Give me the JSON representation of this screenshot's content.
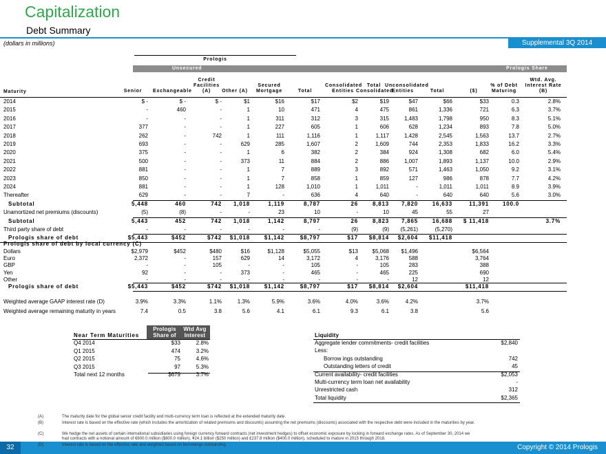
{
  "header": {
    "title": "Capitalization",
    "subtitle": "Debt Summary",
    "units": "(dollars in millions)",
    "badge": "Supplemental 3Q 2014"
  },
  "debt_table": {
    "group_label": "Prologis",
    "unsecured_label": "Unsecured",
    "share_label": "Prologis Share",
    "columns": [
      "Maturity",
      "Senior",
      "Exchangeable",
      "Credit Facilities (A)",
      "Other (A)",
      "Secured Mortgage",
      "Total",
      "Consolidated Entities",
      "Total Consolidated",
      "Unconsolidated Entities",
      "Total",
      "($)",
      "% of Debt Maturing",
      "Wtd. Avg. Interest Rate (B)"
    ],
    "rows": [
      [
        "2014",
        "$ -",
        "$ -",
        "$ -",
        "$1",
        "$16",
        "$17",
        "$2",
        "$19",
        "$47",
        "$66",
        "$33",
        "0.3",
        "2.8%"
      ],
      [
        "2015",
        "-",
        "460",
        "-",
        "1",
        "10",
        "471",
        "4",
        "475",
        "861",
        "1,336",
        "721",
        "6.3",
        "3.7%"
      ],
      [
        "2016",
        "-",
        "-",
        "-",
        "1",
        "311",
        "312",
        "3",
        "315",
        "1,483",
        "1,798",
        "950",
        "8.3",
        "5.1%"
      ],
      [
        "2017",
        "377",
        "-",
        "-",
        "1",
        "227",
        "605",
        "1",
        "606",
        "628",
        "1,234",
        "893",
        "7.8",
        "5.0%"
      ],
      [
        "2018",
        "262",
        "-",
        "742",
        "1",
        "111",
        "1,116",
        "1",
        "1,117",
        "1,428",
        "2,545",
        "1,563",
        "13.7",
        "2.7%"
      ],
      [
        "2019",
        "693",
        "-",
        "-",
        "629",
        "285",
        "1,607",
        "2",
        "1,609",
        "744",
        "2,353",
        "1,833",
        "16.2",
        "3.3%"
      ],
      [
        "2020",
        "375",
        "-",
        "-",
        "1",
        "6",
        "382",
        "2",
        "384",
        "924",
        "1,308",
        "682",
        "6.0",
        "5.4%"
      ],
      [
        "2021",
        "500",
        "-",
        "-",
        "373",
        "11",
        "884",
        "2",
        "886",
        "1,007",
        "1,893",
        "1,137",
        "10.0",
        "2.9%"
      ],
      [
        "2022",
        "881",
        "-",
        "-",
        "1",
        "7",
        "889",
        "3",
        "892",
        "571",
        "1,463",
        "1,050",
        "9.2",
        "3.1%"
      ],
      [
        "2023",
        "850",
        "-",
        "-",
        "1",
        "7",
        "858",
        "1",
        "859",
        "127",
        "986",
        "878",
        "7.7",
        "4.2%"
      ],
      [
        "2024",
        "881",
        "-",
        "-",
        "1",
        "128",
        "1,010",
        "1",
        "1,011",
        "-",
        "1,011",
        "1,011",
        "8.9",
        "3.9%"
      ],
      [
        "Thereafter",
        "629",
        "-",
        "-",
        "7",
        "-",
        "636",
        "4",
        "640",
        "-",
        "640",
        "640",
        "5.6",
        "3.0%"
      ],
      [
        "Subtotal",
        "5,448",
        "460",
        "742",
        "1,018",
        "1,119",
        "8,787",
        "26",
        "8,813",
        "7,820",
        "16,633",
        "11,391",
        "100.0",
        null
      ],
      [
        "Unamortized net premiums (discounts)",
        "(5)",
        "(8)",
        "-",
        "-",
        "23",
        "10",
        "-",
        "10",
        "45",
        "55",
        "27",
        null,
        null
      ],
      [
        "Subtotal",
        "5,443",
        "452",
        "742",
        "1,018",
        "1,142",
        "8,797",
        "26",
        "8,823",
        "7,865",
        "16,688",
        "$ 11,418",
        null,
        "3.7%"
      ],
      [
        "Third party share of debt",
        "-",
        "-",
        "-",
        "-",
        "-",
        "-",
        "(9)",
        "(9)",
        "(5,261)",
        "(5,270)",
        null,
        null,
        null
      ],
      [
        "Prologis share of debt",
        "$5,443",
        "$452",
        "$742",
        "$1,018",
        "$1,142",
        "$8,797",
        "$17",
        "$8,814",
        "$2,604",
        "$11,418",
        null,
        null,
        null
      ]
    ]
  },
  "currency_table": {
    "title": "Prologis share of debt by local currency (C)",
    "rows": [
      [
        "Dollars",
        "$2,979",
        "$452",
        "$480",
        "$16",
        "$1,128",
        "$5,055",
        "$13",
        "$5,068",
        "$1,496",
        null,
        "$6,564",
        null,
        null
      ],
      [
        "Euro",
        "2,372",
        "-",
        "157",
        "629",
        "14",
        "3,172",
        "4",
        "3,176",
        "588",
        null,
        "3,764",
        null,
        null
      ],
      [
        "GBP",
        "-",
        "-",
        "105",
        "-",
        "-",
        "105",
        "-",
        "105",
        "283",
        null,
        "388",
        null,
        null
      ],
      [
        "Yen",
        "92",
        "-",
        "-",
        "373",
        "-",
        "465",
        "-",
        "465",
        "225",
        null,
        "690",
        null,
        null
      ],
      [
        "Other",
        "-",
        "-",
        "-",
        "-",
        "-",
        "-",
        "-",
        "-",
        "12",
        null,
        "12",
        null,
        null
      ],
      [
        "Prologis share of debt",
        "$5,443",
        "$452",
        "$742",
        "$1,018",
        "$1,142",
        "$8,797",
        "$17",
        "$8,814",
        "$2,604",
        null,
        "$11,418",
        null,
        null
      ]
    ]
  },
  "metrics_rows": [
    [
      "Weighted average GAAP interest rate (D)",
      "3.9%",
      "3.3%",
      "1.1%",
      "1.3%",
      "5.9%",
      "3.6%",
      "4.0%",
      "3.6%",
      "4.2%",
      null,
      "3.7%",
      null,
      null
    ],
    [
      "Weighted average remaining maturity in years",
      "7.4",
      "0.5",
      "3.8",
      "5.6",
      "4.1",
      "6.1",
      "9.3",
      "6.1",
      "3.8",
      null,
      "5.6",
      null,
      null
    ]
  ],
  "near_term": {
    "columns": [
      "Near Term Maturities",
      "Prologis Share of Debt",
      "Wtd Avg Interest Rate"
    ],
    "rows": [
      [
        "Q4 2014",
        "$33",
        "2.8%"
      ],
      [
        "Q1 2015",
        "474",
        "3.2%"
      ],
      [
        "Q2 2015",
        "75",
        "4.6%"
      ],
      [
        "Q3 2015",
        "97",
        "5.3%"
      ],
      [
        "Total next 12 months",
        "$679",
        "3.7%"
      ]
    ]
  },
  "liquidity": {
    "title": "Liquidity",
    "rows": [
      [
        "Aggregate lender commitments- credit facilities",
        "$2,840"
      ],
      [
        "Less:",
        null
      ],
      [
        "Borrow ings outstanding",
        "742"
      ],
      [
        "Outstanding letters of credit",
        "45"
      ],
      [
        "Current availability- credit facilities",
        "$2,053"
      ],
      [
        "Multi-currency term loan net availability",
        "-"
      ],
      [
        "Unrestricted cash",
        "312"
      ],
      [
        "Total liquidity",
        "$2,365"
      ]
    ]
  },
  "footnotes": [
    {
      "marker": "(A)",
      "text": "The maturity date for the global senior credit facility and multi-currency term loan is reflected at the extended maturity date."
    },
    {
      "marker": "(B)",
      "text": "Interest rate is based on the effective rate (which includes the amortization of related premiums and discounts) assuming the net premiums (discounts) associated with the respective debt were included in the maturities by year."
    },
    {
      "marker": "(C)",
      "text": "We hedge the net assets of certain international subsidiaries using foreign currency forward contracts (net investment hedges) to offset economic exposure by locking in forward exchange rates. As of September 30, 2014 we had contracts with a notional amount of €600.0 million ($800.0 million), ¥24.1 billion ($250 million) and £237.8 million ($400.0 million), scheduled to mature in 2015 through 2018."
    },
    {
      "marker": "(D)",
      "text": "Interest rate is based on the effective rate and weighted based on borrowings outstanding."
    }
  ],
  "footer": {
    "page": "32",
    "copyright": "Copyright © 2014 Prologis"
  }
}
